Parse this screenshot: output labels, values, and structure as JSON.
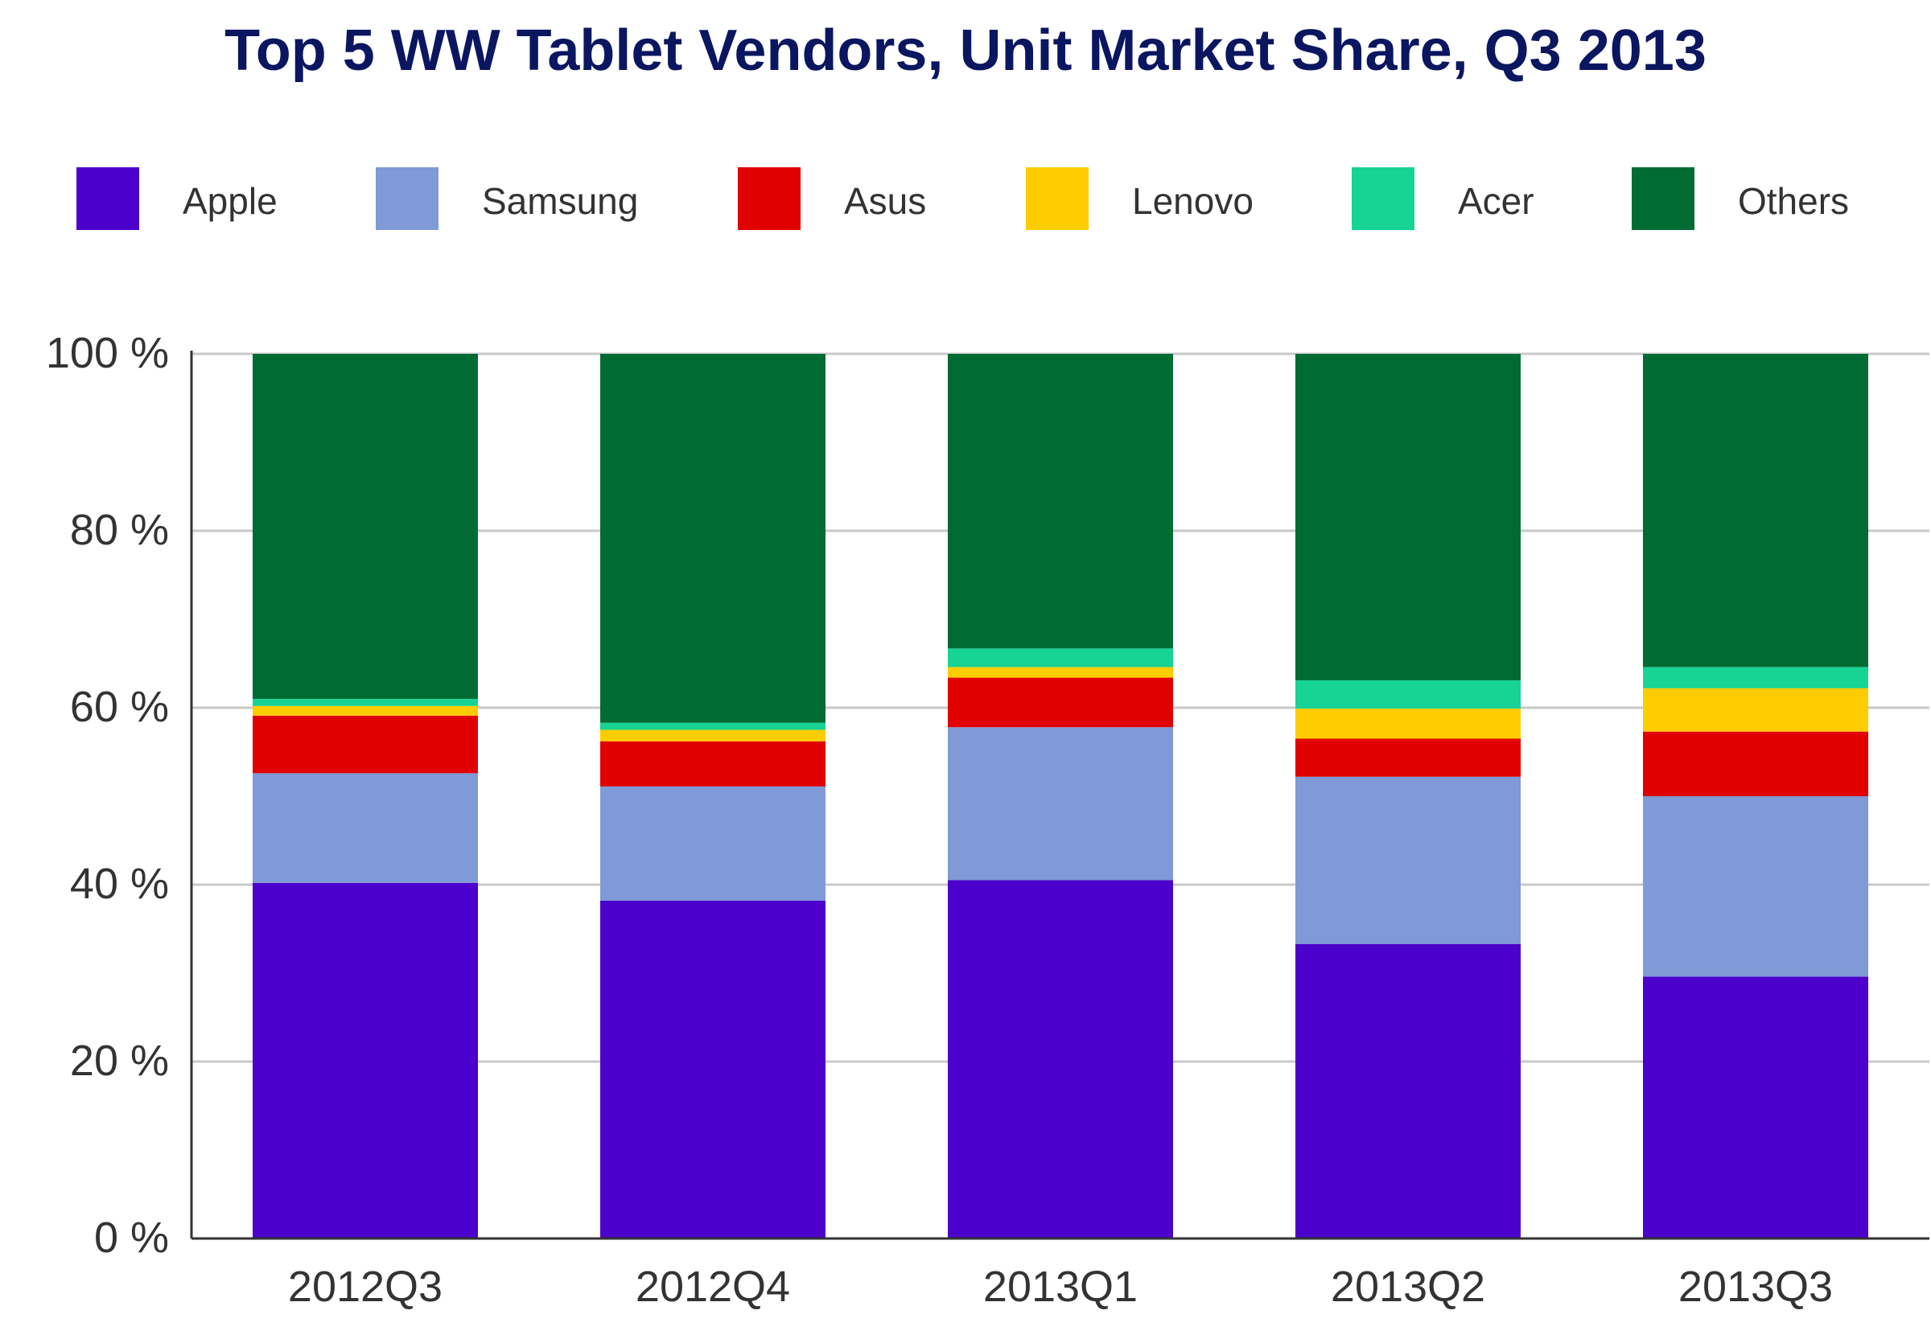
{
  "chart_data": {
    "type": "bar",
    "stacked": true,
    "title": "Top 5 WW Tablet Vendors, Unit Market Share, Q3 2013",
    "xlabel": "",
    "ylabel": "",
    "ylim": [
      0,
      100
    ],
    "y_ticks": [
      "0 %",
      "20 %",
      "40 %",
      "60 %",
      "80 %",
      "100 %"
    ],
    "y_tick_values": [
      0,
      20,
      40,
      60,
      80,
      100
    ],
    "grid": true,
    "legend_position": "top",
    "categories": [
      "2012Q3",
      "2012Q4",
      "2013Q1",
      "2013Q2",
      "2013Q3"
    ],
    "series": [
      {
        "name": "Apple",
        "color": "#4c00cc",
        "values": [
          40.2,
          38.2,
          40.5,
          33.3,
          29.6
        ]
      },
      {
        "name": "Samsung",
        "color": "#7f9ad6",
        "values": [
          12.4,
          12.9,
          17.3,
          18.9,
          20.4
        ]
      },
      {
        "name": "Asus",
        "color": "#e00000",
        "values": [
          6.5,
          5.1,
          5.6,
          4.3,
          7.3
        ]
      },
      {
        "name": "Lenovo",
        "color": "#ffcc00",
        "values": [
          1.1,
          1.3,
          1.2,
          3.4,
          4.9
        ]
      },
      {
        "name": "Acer",
        "color": "#17d394",
        "values": [
          0.8,
          0.8,
          2.1,
          3.2,
          2.4
        ]
      },
      {
        "name": "Others",
        "color": "#006b33",
        "values": [
          39.0,
          41.7,
          33.3,
          36.9,
          35.4
        ]
      }
    ]
  }
}
